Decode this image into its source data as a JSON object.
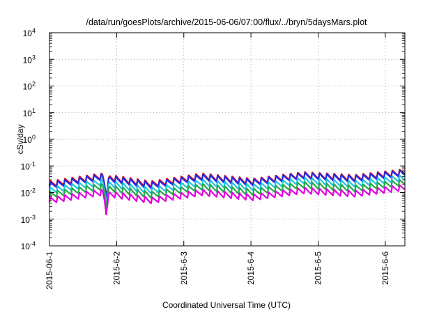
{
  "chart_data": {
    "type": "line",
    "title": "/data/run/goesPlots/archive/2015-06-06/07:00/flux/../bryn/5daysMars.plot",
    "xlabel": "Coordinated Universal Time (UTC)",
    "ylabel": "cSv/day",
    "yscale": "log",
    "ylim": [
      0.0001,
      10000
    ],
    "y_ticks": [
      {
        "base": "10",
        "exp": "-4",
        "value": 0.0001
      },
      {
        "base": "10",
        "exp": "-3",
        "value": 0.001
      },
      {
        "base": "10",
        "exp": "-2",
        "value": 0.01
      },
      {
        "base": "10",
        "exp": "-1",
        "value": 0.1
      },
      {
        "base": "10",
        "exp": "0",
        "value": 1
      },
      {
        "base": "10",
        "exp": "1",
        "value": 10
      },
      {
        "base": "10",
        "exp": "2",
        "value": 100
      },
      {
        "base": "10",
        "exp": "3",
        "value": 1000
      },
      {
        "base": "10",
        "exp": "4",
        "value": 10000
      }
    ],
    "xlim": [
      "2015-06-01T00:00",
      "2015-06-06T07:00"
    ],
    "x_ticks": [
      {
        "label": "2015-06-1",
        "value": "2015-06-01T00:00"
      },
      {
        "label": "2015-6-2",
        "value": "2015-06-02T00:00"
      },
      {
        "label": "2015-6-3",
        "value": "2015-06-03T00:00"
      },
      {
        "label": "2015-6-4",
        "value": "2015-06-04T00:00"
      },
      {
        "label": "2015-6-5",
        "value": "2015-06-05T00:00"
      },
      {
        "label": "2015-6-6",
        "value": "2015-06-06T00:00"
      }
    ],
    "grid": true,
    "sawtooth_period_hours": 2.6,
    "series": [
      {
        "color": "#d9001a",
        "values": [
          0.028,
          0.055,
          0.028,
          0.055,
          0.035,
          0.062,
          0.048,
          0.08
        ]
      },
      {
        "color": "#1f2ee8",
        "values": [
          0.025,
          0.05,
          0.025,
          0.05,
          0.032,
          0.058,
          0.044,
          0.074
        ]
      },
      {
        "color": "#22c4d9",
        "values": [
          0.016,
          0.032,
          0.016,
          0.032,
          0.021,
          0.038,
          0.028,
          0.048
        ]
      },
      {
        "color": "#22a84a",
        "values": [
          0.011,
          0.022,
          0.011,
          0.022,
          0.014,
          0.026,
          0.019,
          0.033
        ]
      },
      {
        "color": "#e000e0",
        "values": [
          0.0068,
          0.0135,
          0.0068,
          0.0135,
          0.0088,
          0.016,
          0.012,
          0.021
        ]
      }
    ],
    "dip": {
      "center": "2015-06-01T20:15",
      "factor": 0.16
    }
  }
}
